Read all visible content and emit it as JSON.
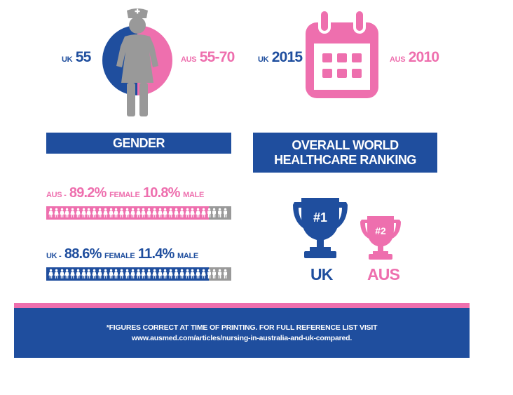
{
  "colors": {
    "blue": "#1f4e9e",
    "pink": "#ee6fae",
    "grey": "#999999"
  },
  "retirement": {
    "uk_label": "UK",
    "uk_value": "55",
    "aus_label": "AUS",
    "aus_value": "55-70",
    "icon": "nurse-icon"
  },
  "year": {
    "uk_label": "UK",
    "uk_value": "2015",
    "aus_label": "AUS",
    "aus_value": "2010",
    "icon": "calendar-icon"
  },
  "gender": {
    "title": "GENDER",
    "aus": {
      "prefix": "AUS -",
      "female_pct": "89.2%",
      "female_label": "FEMALE",
      "male_pct": "10.8%",
      "male_label": "MALE",
      "female_fraction": 0.892
    },
    "uk": {
      "prefix": "UK -",
      "female_pct": "88.6%",
      "female_label": "FEMALE",
      "male_pct": "11.4%",
      "male_label": "MALE",
      "female_fraction": 0.886
    }
  },
  "ranking": {
    "title_line1": "OVERALL WORLD",
    "title_line2": "HEALTHCARE RANKING",
    "uk": {
      "rank": "#1",
      "name": "UK"
    },
    "aus": {
      "rank": "#2",
      "name": "AUS"
    }
  },
  "footer": {
    "line1": "*FIGURES CORRECT AT TIME OF PRINTING. FOR FULL REFERENCE LIST VISIT",
    "line2": "www.ausmed.com/articles/nursing-in-australia-and-uk-compared."
  }
}
